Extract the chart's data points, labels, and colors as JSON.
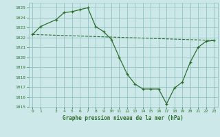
{
  "line1_x": [
    0,
    1,
    3,
    4,
    5,
    6,
    7,
    8,
    9,
    10,
    11,
    12,
    13,
    14,
    15,
    16,
    17,
    18,
    19,
    20,
    21,
    22,
    23
  ],
  "line1_y": [
    1022.3,
    1023.1,
    1023.8,
    1024.5,
    1024.6,
    1024.8,
    1025.0,
    1023.1,
    1022.6,
    1021.8,
    1020.0,
    1018.3,
    1017.3,
    1016.8,
    1016.8,
    1016.8,
    1015.3,
    1016.9,
    1017.5,
    1019.5,
    1021.0,
    1021.6,
    1021.7
  ],
  "line2_x": [
    0,
    23
  ],
  "line2_y": [
    1022.3,
    1021.7
  ],
  "line_color": "#2d6e2d",
  "bg_color": "#cce8e8",
  "grid_color": "#88bbbb",
  "xlabel": "Graphe pression niveau de la mer (hPa)",
  "ylim": [
    1015,
    1025.5
  ],
  "xlim": [
    -0.5,
    23.5
  ],
  "yticks": [
    1015,
    1016,
    1017,
    1018,
    1019,
    1020,
    1021,
    1022,
    1023,
    1024,
    1025
  ],
  "xticks": [
    0,
    1,
    3,
    4,
    5,
    6,
    7,
    8,
    9,
    10,
    11,
    12,
    13,
    14,
    15,
    16,
    17,
    18,
    19,
    20,
    21,
    22,
    23
  ]
}
